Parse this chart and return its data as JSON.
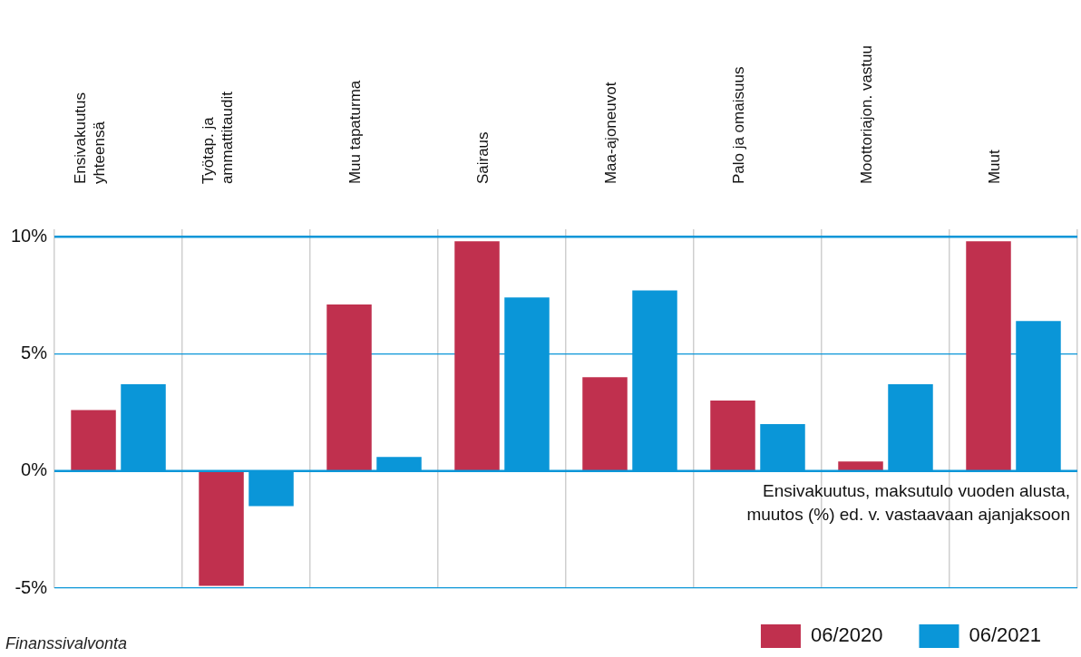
{
  "chart_data": {
    "type": "bar",
    "categories": [
      "Ensivakuutus yhteensä",
      "Työtap. ja ammattitaudit",
      "Muu tapaturma",
      "Sairaus",
      "Maa-ajoneuvot",
      "Palo ja omaisuus",
      "Moottoriajon. vastuu",
      "Muut"
    ],
    "series": [
      {
        "name": "06/2020",
        "color": "#c0304e",
        "values": [
          2.6,
          -4.9,
          7.1,
          9.8,
          4.0,
          3.0,
          0.4,
          9.8
        ]
      },
      {
        "name": "06/2021",
        "color": "#0a96d8",
        "values": [
          3.7,
          -1.5,
          0.6,
          7.4,
          7.7,
          2.0,
          3.7,
          6.4
        ]
      }
    ],
    "ylim": [
      -5,
      10
    ],
    "yticks": [
      {
        "value": -5,
        "label": "-5%"
      },
      {
        "value": 0,
        "label": "0%"
      },
      {
        "value": 5,
        "label": "5%"
      },
      {
        "value": 10,
        "label": "10%"
      }
    ],
    "grid": true,
    "ref_lines": [
      {
        "axis": "y",
        "value": 0,
        "color": "#0a96d8"
      }
    ],
    "legend": "bottom",
    "annotations": [
      "Ensivakuutus, maksutulo vuoden alusta,\nmuutos (%) ed. v. vastaavaan ajanjaksoon",
      "Finanssivalvonta"
    ]
  }
}
